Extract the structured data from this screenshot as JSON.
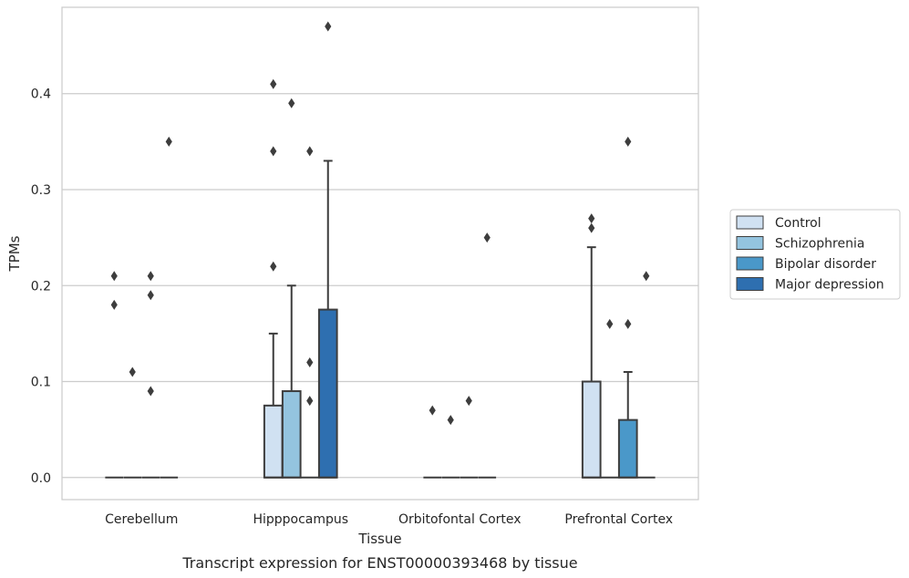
{
  "chart_data": {
    "type": "box",
    "title": "",
    "caption": "Transcript expression for ENST00000393468 by tissue",
    "xlabel": "Tissue",
    "ylabel": "TPMs",
    "ylim": [
      -0.023,
      0.49
    ],
    "yticks": [
      0.0,
      0.1,
      0.2,
      0.3,
      0.4
    ],
    "ytick_labels": [
      "0.0",
      "0.1",
      "0.2",
      "0.3",
      "0.4"
    ],
    "grid": "horizontal",
    "legend_position": "right",
    "categories": [
      "Cerebellum",
      "Hipppocampus",
      "Orbitofontal Cortex",
      "Prefrontal Cortex"
    ],
    "series": [
      {
        "name": "Control",
        "color": "#d0e1f2",
        "boxes": [
          {
            "q1": 0,
            "median": 0,
            "q3": 0,
            "whisker_low": 0,
            "whisker_high": 0,
            "outliers": [
              0.21,
              0.18
            ]
          },
          {
            "q1": 0,
            "median": 0,
            "q3": 0.075,
            "whisker_low": 0,
            "whisker_high": 0.15,
            "outliers": [
              0.41,
              0.34,
              0.22
            ]
          },
          {
            "q1": 0,
            "median": 0,
            "q3": 0,
            "whisker_low": 0,
            "whisker_high": 0,
            "outliers": [
              0.07
            ]
          },
          {
            "q1": 0,
            "median": 0,
            "q3": 0.1,
            "whisker_low": 0,
            "whisker_high": 0.24,
            "outliers": [
              0.27,
              0.26
            ]
          }
        ]
      },
      {
        "name": "Schizophrenia",
        "color": "#94c4df",
        "boxes": [
          {
            "q1": 0,
            "median": 0,
            "q3": 0,
            "whisker_low": 0,
            "whisker_high": 0,
            "outliers": [
              0.11
            ]
          },
          {
            "q1": 0,
            "median": 0,
            "q3": 0.09,
            "whisker_low": 0,
            "whisker_high": 0.2,
            "outliers": [
              0.39
            ]
          },
          {
            "q1": 0,
            "median": 0,
            "q3": 0,
            "whisker_low": 0,
            "whisker_high": 0,
            "outliers": [
              0.06
            ]
          },
          {
            "q1": 0,
            "median": 0,
            "q3": 0,
            "whisker_low": 0,
            "whisker_high": 0,
            "outliers": [
              0.16
            ]
          }
        ]
      },
      {
        "name": "Bipolar disorder",
        "color": "#4a98c9",
        "boxes": [
          {
            "q1": 0,
            "median": 0,
            "q3": 0,
            "whisker_low": 0,
            "whisker_high": 0,
            "outliers": [
              0.21,
              0.19,
              0.09
            ]
          },
          {
            "q1": 0,
            "median": 0,
            "q3": 0,
            "whisker_low": 0,
            "whisker_high": 0,
            "outliers": [
              0.34,
              0.12,
              0.08
            ]
          },
          {
            "q1": 0,
            "median": 0,
            "q3": 0,
            "whisker_low": 0,
            "whisker_high": 0,
            "outliers": [
              0.08
            ]
          },
          {
            "q1": 0,
            "median": 0,
            "q3": 0.06,
            "whisker_low": 0,
            "whisker_high": 0.11,
            "outliers": [
              0.35,
              0.16
            ]
          }
        ]
      },
      {
        "name": "Major depression",
        "color": "#2e6fb0",
        "boxes": [
          {
            "q1": 0,
            "median": 0,
            "q3": 0,
            "whisker_low": 0,
            "whisker_high": 0,
            "outliers": [
              0.35
            ]
          },
          {
            "q1": 0,
            "median": 0,
            "q3": 0.175,
            "whisker_low": 0,
            "whisker_high": 0.33,
            "outliers": [
              0.47
            ]
          },
          {
            "q1": 0,
            "median": 0,
            "q3": 0,
            "whisker_low": 0,
            "whisker_high": 0,
            "outliers": [
              0.25
            ]
          },
          {
            "q1": 0,
            "median": 0,
            "q3": 0,
            "whisker_low": 0,
            "whisker_high": 0,
            "outliers": [
              0.21
            ]
          }
        ]
      }
    ]
  }
}
